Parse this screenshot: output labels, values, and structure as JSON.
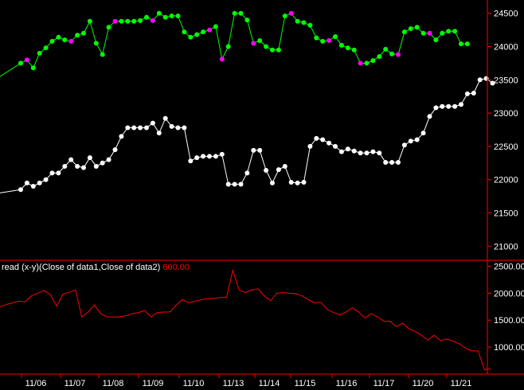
{
  "colors": {
    "background": "#000000",
    "axis": "#ff0000",
    "upper_up": "#00ff00",
    "upper_down": "#ff00ff",
    "lower_series": "#ffffff",
    "spread": "#ff0000",
    "tick_text": "#ffffff"
  },
  "chart_data": [
    {
      "type": "line",
      "panel": "price",
      "y_ticks": [
        "24500",
        "24000",
        "23500",
        "23000",
        "22500",
        "22000",
        "21500",
        "21000"
      ],
      "ylim": [
        20800,
        24700
      ],
      "series": [
        {
          "marker_color_by_direction": true,
          "values": [
            23750,
            23800,
            23680,
            23900,
            23980,
            24080,
            24140,
            24100,
            24080,
            24170,
            24200,
            24380,
            24050,
            23880,
            24290,
            24380,
            24380,
            24380,
            24380,
            24390,
            24440,
            24390,
            24500,
            24440,
            24460,
            24460,
            24220,
            24140,
            24180,
            24220,
            24250,
            24300,
            23810,
            24000,
            24500,
            24500,
            24400,
            24050,
            24090,
            24000,
            23950,
            23950,
            24460,
            24500,
            24380,
            24360,
            24320,
            24130,
            24080,
            24090,
            24150,
            24020,
            23980,
            23950,
            23750,
            23750,
            23790,
            23850,
            23960,
            23890,
            23880,
            24220,
            24270,
            24290,
            24200,
            24200,
            24100,
            24200,
            24230,
            24230,
            24040,
            24040
          ],
          "down_indices": [
            1,
            8,
            15,
            21,
            30,
            32,
            37,
            43,
            49,
            54,
            60,
            65
          ]
        },
        {
          "values": [
            21850,
            21950,
            21900,
            21950,
            22000,
            22100,
            22100,
            22200,
            22300,
            22200,
            22180,
            22330,
            22200,
            22250,
            22300,
            22450,
            22650,
            22780,
            22780,
            22780,
            22780,
            22850,
            22700,
            22920,
            22800,
            22780,
            22780,
            22280,
            22330,
            22350,
            22350,
            22350,
            22380,
            21930,
            21930,
            21930,
            22100,
            22440,
            22440,
            22140,
            21950,
            22150,
            22200,
            21960,
            21950,
            21960,
            22500,
            22620,
            22600,
            22550,
            22500,
            22420,
            22460,
            22430,
            22400,
            22400,
            22420,
            22400,
            22260,
            22260,
            22260,
            22520,
            22580,
            22600,
            22700,
            22950,
            23080,
            23100,
            23100,
            23100,
            23130,
            23290,
            23300,
            23500,
            23520,
            23450
          ]
        }
      ]
    },
    {
      "type": "line",
      "panel": "spread",
      "y_ticks": [
        "2500.00",
        "2000.00",
        "1500.00",
        "1000.00"
      ],
      "ylim": [
        500,
        2580
      ],
      "series": [
        {
          "values": [
            1750,
            1790,
            1820,
            1850,
            1840,
            1950,
            2000,
            2050,
            1970,
            1760,
            1980,
            2020,
            2060,
            1560,
            1650,
            1780,
            1620,
            1560,
            1560,
            1560,
            1580,
            1620,
            1640,
            1680,
            1560,
            1640,
            1650,
            1650,
            1780,
            1880,
            1820,
            1850,
            1880,
            1900,
            1900,
            1920,
            1920,
            2420,
            2060,
            2010,
            2060,
            2080,
            1950,
            1860,
            2000,
            2010,
            2000,
            1990,
            1950,
            1880,
            1820,
            1830,
            1700,
            1640,
            1600,
            1650,
            1730,
            1650,
            1540,
            1620,
            1560,
            1480,
            1480,
            1380,
            1440,
            1340,
            1290,
            1220,
            1130,
            1220,
            1120,
            1150,
            1110,
            1060,
            980,
            930,
            930,
            580,
            600
          ]
        }
      ]
    },
    {
      "type": "axis",
      "panel": "x",
      "date_labels": [
        "11/06",
        "11/07",
        "11/08",
        "11/09",
        "11/10",
        "11/13",
        "11/14",
        "11/15",
        "11/16",
        "11/17",
        "11/20",
        "11/21"
      ]
    }
  ],
  "spread_label": {
    "text": "read (x-y)(Close of data1,Close of data2)",
    "value": "600.00"
  }
}
